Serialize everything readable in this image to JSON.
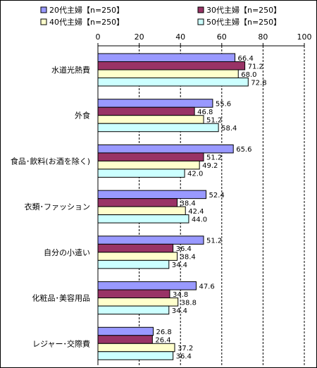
{
  "chart_data": {
    "type": "bar",
    "orientation": "horizontal",
    "categories": [
      "水道光熱費",
      "外食",
      "食品･飲料(お酒を除く)",
      "衣類･ファッション",
      "自分の小遣い",
      "化粧品･美容用品",
      "レジャー･交際費"
    ],
    "series": [
      {
        "name": "20代主婦【n=250】",
        "color": "#9999ff",
        "values": [
          66.4,
          55.6,
          65.6,
          52.4,
          51.2,
          47.6,
          26.8
        ]
      },
      {
        "name": "30代主婦【n=250】",
        "color": "#993366",
        "values": [
          71.2,
          46.8,
          51.2,
          38.4,
          36.4,
          34.8,
          26.4
        ]
      },
      {
        "name": "40代主婦【n=250】",
        "color": "#ffffcc",
        "values": [
          68.0,
          51.2,
          49.2,
          42.4,
          38.4,
          38.8,
          37.2
        ]
      },
      {
        "name": "50代主婦【n=250】",
        "color": "#ccffff",
        "values": [
          72.8,
          58.4,
          42.0,
          44.0,
          34.4,
          34.4,
          36.4
        ]
      }
    ],
    "value_labels": [
      [
        "66.4",
        "55.6",
        "65.6",
        "52.4",
        "51.2",
        "47.6",
        "26.8"
      ],
      [
        "71.2",
        "46.8",
        "51.2",
        "38.4",
        "36.4",
        "34.8",
        "26.4"
      ],
      [
        "68.0",
        "51.2",
        "49.2",
        "42.4",
        "38.4",
        "38.8",
        "37.2"
      ],
      [
        "72.8",
        "58.4",
        "42.0",
        "44.0",
        "34.4",
        "34.4",
        "36.4"
      ]
    ],
    "xlim": [
      0,
      100
    ],
    "xticks": [
      "0",
      "20",
      "40",
      "60",
      "80",
      "100"
    ],
    "grid": true,
    "legend_position": "top"
  }
}
